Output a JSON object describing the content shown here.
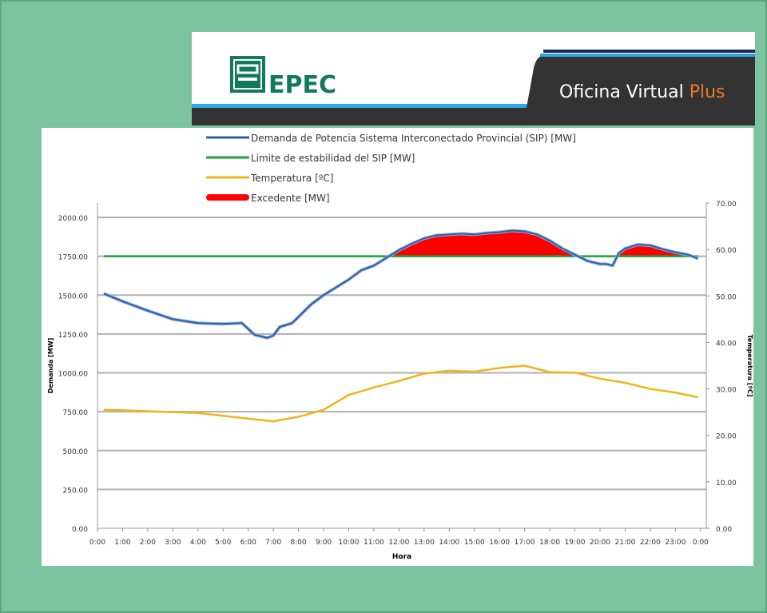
{
  "header": {
    "brand": "EPEC",
    "product_prefix": "Oficina Virtual ",
    "product_suffix": "Plus",
    "colors": {
      "brand_green": "#127a5c",
      "accent_orange": "#e8782a",
      "dark": "#333333",
      "blue": "#2ea8e0"
    }
  },
  "chart_data": {
    "type": "line",
    "xlabel": "Hora",
    "ylabel": "Demanda [MW]",
    "y2label": "Temperatura [ºC]",
    "x_ticks": [
      "0:00",
      "1:00",
      "2:00",
      "3:00",
      "4:00",
      "5:00",
      "6:00",
      "7:00",
      "8:00",
      "9:00",
      "10:00",
      "11:00",
      "12:00",
      "13:00",
      "14:00",
      "15:00",
      "16:00",
      "17:00",
      "18:00",
      "19:00",
      "20:00",
      "21:00",
      "22:00",
      "23:00",
      "0:00"
    ],
    "y_ticks": [
      "0.00",
      "250.00",
      "500.00",
      "750.00",
      "1000.00",
      "1250.00",
      "1500.00",
      "1750.00",
      "2000.00"
    ],
    "y2_ticks": [
      "0.00",
      "10.00",
      "20.00",
      "30.00",
      "40.00",
      "50.00",
      "60.00",
      "70.00"
    ],
    "xlim_hours": [
      0,
      24
    ],
    "ylim": [
      0,
      2100
    ],
    "y2lim": [
      0,
      70
    ],
    "grid": "horizontal",
    "legend_position": "top",
    "series": [
      {
        "name": "Demanda de Potencia Sistema Interconectado Provincial (SIP) [MW]",
        "color": "#2f5fa8",
        "axis": "left",
        "x": [
          0.25,
          1,
          2,
          3,
          4,
          5,
          5.75,
          6.25,
          6.75,
          7,
          7.25,
          7.75,
          8,
          8.5,
          9,
          9.5,
          10,
          10.5,
          11,
          11.5,
          12,
          12.5,
          13,
          13.5,
          14,
          14.5,
          15,
          15.5,
          16,
          16.5,
          17,
          17.5,
          18,
          18.5,
          19,
          19.5,
          20,
          20.25,
          20.5,
          20.75,
          21,
          21.5,
          22,
          22.5,
          23,
          23.5,
          23.9
        ],
        "y": [
          1510,
          1460,
          1400,
          1345,
          1320,
          1315,
          1320,
          1245,
          1225,
          1240,
          1295,
          1320,
          1360,
          1440,
          1500,
          1550,
          1600,
          1660,
          1690,
          1740,
          1790,
          1830,
          1865,
          1885,
          1890,
          1895,
          1890,
          1900,
          1905,
          1915,
          1910,
          1890,
          1850,
          1800,
          1760,
          1720,
          1700,
          1700,
          1690,
          1770,
          1800,
          1825,
          1820,
          1795,
          1775,
          1760,
          1735
        ]
      },
      {
        "name": "Limite de estabilidad del SIP [MW]",
        "color": "#1fa33a",
        "axis": "left",
        "x": [
          0.25,
          23.9
        ],
        "y": [
          1750,
          1750
        ]
      },
      {
        "name": "Temperatura [ºC]",
        "color": "#f0b419",
        "axis": "right",
        "x": [
          0.25,
          1,
          2,
          3,
          4,
          5,
          6,
          7,
          8,
          9,
          10,
          11,
          12,
          13,
          14,
          15,
          16,
          17,
          18,
          19,
          20,
          21,
          22,
          23,
          23.9
        ],
        "y": [
          25.5,
          25.4,
          25.2,
          25,
          24.8,
          24.2,
          23.6,
          23,
          24,
          25.5,
          28.7,
          30.3,
          31.7,
          33.3,
          33.9,
          33.7,
          34.5,
          35,
          33.6,
          33.5,
          32.2,
          31.3,
          30,
          29.2,
          28.2
        ]
      },
      {
        "name": "Excedente [MW]",
        "color": "#ff0000",
        "type": "area",
        "description_of": "demand above limit"
      }
    ]
  }
}
